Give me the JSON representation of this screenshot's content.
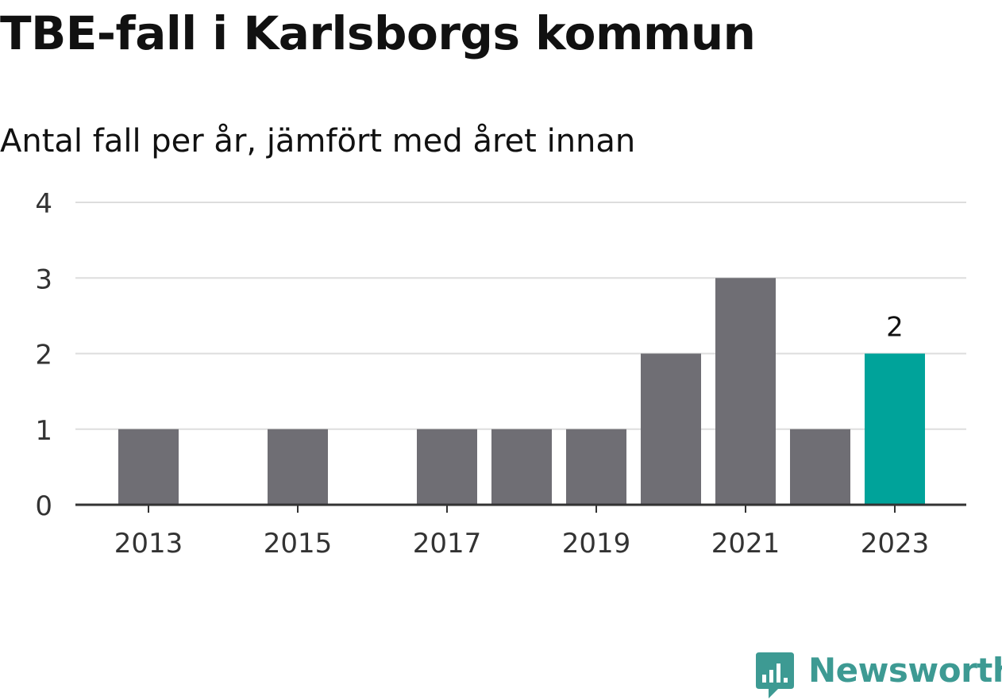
{
  "chart_data": {
    "type": "bar",
    "title": "TBE-fall i Karlsborgs kommun",
    "subtitle": "Antal fall per år, jämfört med året innan",
    "categories": [
      "2013",
      "2014",
      "2015",
      "2016",
      "2017",
      "2018",
      "2019",
      "2020",
      "2021",
      "2022",
      "2023"
    ],
    "values": [
      1,
      0,
      1,
      0,
      1,
      1,
      1,
      2,
      3,
      1,
      2
    ],
    "x_tick_labels": [
      "2013",
      "2015",
      "2017",
      "2019",
      "2021",
      "2023"
    ],
    "y_ticks": [
      "0",
      "1",
      "2",
      "3",
      "4"
    ],
    "ylim": [
      0,
      4
    ],
    "xlabel": "",
    "ylabel": "",
    "grid": true,
    "legend": "none",
    "highlight_category": "2023",
    "highlight_label": "2",
    "colors": {
      "bar": "#6f6e74",
      "highlight": "#00a39a",
      "grid": "#dddddd",
      "axis": "#333333",
      "tick_text": "#333333"
    }
  },
  "brand": {
    "name": "Newsworthy",
    "logo_icon": "newsworthy-logo-icon",
    "color": "#3d9a93"
  }
}
